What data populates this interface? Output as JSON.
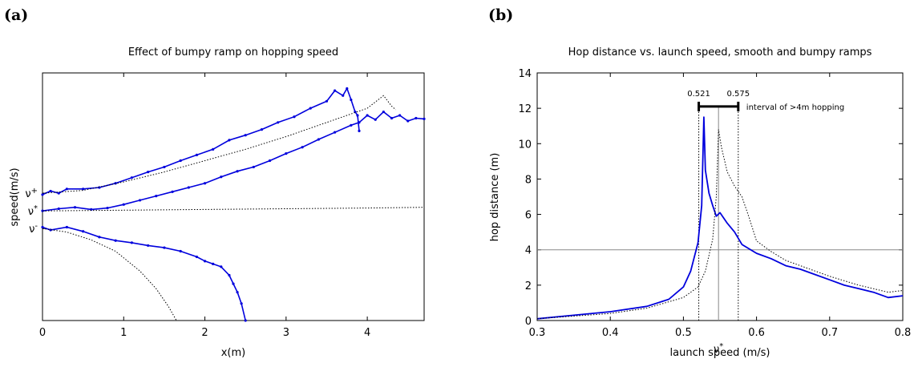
{
  "chart_data": [
    {
      "panel": "(a)",
      "type": "line",
      "title": "Effect of bumpy ramp on hopping speed",
      "xlabel": "x(m)",
      "ylabel": "speed(m/s)",
      "xlim": [
        0,
        4.7
      ],
      "xticks": [
        0,
        1,
        2,
        3,
        4
      ],
      "y_markers": [
        {
          "label": "ν",
          "sup": "+",
          "value": 0.58
        },
        {
          "label": "ν",
          "sup": "*",
          "value": 0.555
        },
        {
          "label": "ν",
          "sup": "-",
          "value": 0.53
        }
      ],
      "ylim": [
        0.4,
        0.75
      ],
      "grid": false,
      "series": [
        {
          "style": "solid-markers",
          "color": "#0000dd",
          "x": [
            0,
            0.1,
            0.2,
            0.3,
            0.5,
            0.7,
            0.9,
            1.1,
            1.3,
            1.5,
            1.7,
            1.9,
            2.1,
            2.3,
            2.5,
            2.7,
            2.9,
            3.1,
            3.3,
            3.5,
            3.6,
            3.7,
            3.75,
            3.8,
            3.85,
            3.88,
            3.9
          ],
          "y": [
            0.578,
            0.583,
            0.58,
            0.586,
            0.586,
            0.588,
            0.594,
            0.602,
            0.61,
            0.617,
            0.626,
            0.634,
            0.642,
            0.655,
            0.662,
            0.67,
            0.68,
            0.688,
            0.7,
            0.71,
            0.725,
            0.718,
            0.728,
            0.712,
            0.695,
            0.69,
            0.668
          ]
        },
        {
          "style": "solid-markers",
          "color": "#0000dd",
          "x": [
            0,
            0.2,
            0.4,
            0.6,
            0.8,
            1.0,
            1.2,
            1.4,
            1.6,
            1.8,
            2.0,
            2.2,
            2.4,
            2.6,
            2.8,
            3.0,
            3.2,
            3.4,
            3.6,
            3.8,
            3.9,
            4.0,
            4.1,
            4.2,
            4.3,
            4.4,
            4.5,
            4.6,
            4.7
          ],
          "y": [
            0.555,
            0.558,
            0.56,
            0.557,
            0.559,
            0.564,
            0.57,
            0.576,
            0.582,
            0.588,
            0.594,
            0.603,
            0.611,
            0.617,
            0.626,
            0.636,
            0.645,
            0.656,
            0.666,
            0.676,
            0.68,
            0.69,
            0.684,
            0.695,
            0.686,
            0.69,
            0.682,
            0.686,
            0.685
          ]
        },
        {
          "style": "solid-markers",
          "color": "#0000dd",
          "x": [
            0,
            0.1,
            0.3,
            0.5,
            0.7,
            0.9,
            1.1,
            1.3,
            1.5,
            1.7,
            1.9,
            2.0,
            2.1,
            2.2,
            2.3,
            2.35,
            2.4,
            2.45,
            2.5
          ],
          "y": [
            0.532,
            0.528,
            0.532,
            0.526,
            0.518,
            0.513,
            0.51,
            0.506,
            0.503,
            0.498,
            0.49,
            0.484,
            0.48,
            0.476,
            0.464,
            0.452,
            0.44,
            0.424,
            0.4
          ]
        },
        {
          "style": "dotted",
          "color": "#000000",
          "x": [
            0,
            0.5,
            1.0,
            1.5,
            2.0,
            2.5,
            3.0,
            3.5,
            4.0,
            4.2,
            4.3,
            4.35
          ],
          "y": [
            0.58,
            0.584,
            0.596,
            0.61,
            0.626,
            0.642,
            0.66,
            0.68,
            0.7,
            0.718,
            0.703,
            0.698
          ]
        },
        {
          "style": "dotted",
          "color": "#000000",
          "x": [
            0,
            1,
            2,
            3,
            4,
            4.7
          ],
          "y": [
            0.555,
            0.556,
            0.557,
            0.558,
            0.559,
            0.56
          ]
        },
        {
          "style": "dotted",
          "color": "#000000",
          "x": [
            0,
            0.3,
            0.6,
            0.9,
            1.2,
            1.4,
            1.55,
            1.65
          ],
          "y": [
            0.53,
            0.525,
            0.514,
            0.498,
            0.47,
            0.445,
            0.42,
            0.4
          ]
        }
      ]
    },
    {
      "panel": "(b)",
      "type": "line",
      "title": "Hop distance vs. launch speed, smooth and bumpy ramps",
      "xlabel": "launch speed (m/s)",
      "ylabel": "hop distance (m)",
      "xlim": [
        0.3,
        0.8
      ],
      "ylim": [
        0,
        14
      ],
      "xticks": [
        0.3,
        0.4,
        0.5,
        0.6,
        0.7,
        0.8
      ],
      "yticks": [
        0,
        2,
        4,
        6,
        8,
        10,
        12,
        14
      ],
      "x_marker": {
        "label": "ν",
        "sup": "*",
        "value": 0.548
      },
      "hline": 4,
      "vlines_dotted": [
        0.521,
        0.575
      ],
      "interval": {
        "from": 0.521,
        "to": 0.575,
        "y": 12.1,
        "left_label": "0.521",
        "right_label": "0.575",
        "text": "interval of >4m hopping"
      },
      "grid": false,
      "series": [
        {
          "style": "solid",
          "color": "#0000dd",
          "x": [
            0.3,
            0.35,
            0.4,
            0.45,
            0.48,
            0.5,
            0.51,
            0.52,
            0.525,
            0.528,
            0.53,
            0.535,
            0.54,
            0.545,
            0.55,
            0.56,
            0.57,
            0.58,
            0.6,
            0.62,
            0.64,
            0.66,
            0.68,
            0.7,
            0.72,
            0.74,
            0.76,
            0.78,
            0.8
          ],
          "y": [
            0.1,
            0.3,
            0.5,
            0.8,
            1.2,
            1.9,
            2.8,
            4.4,
            6.5,
            11.5,
            8.5,
            7.2,
            6.5,
            5.9,
            6.1,
            5.5,
            5.0,
            4.3,
            3.8,
            3.5,
            3.1,
            2.9,
            2.6,
            2.3,
            2.0,
            1.8,
            1.6,
            1.3,
            1.4
          ]
        },
        {
          "style": "dotted",
          "color": "#000000",
          "x": [
            0.3,
            0.4,
            0.45,
            0.5,
            0.52,
            0.53,
            0.54,
            0.545,
            0.548,
            0.552,
            0.56,
            0.57,
            0.58,
            0.59,
            0.6,
            0.62,
            0.64,
            0.66,
            0.7,
            0.74,
            0.78,
            0.8
          ],
          "y": [
            0.1,
            0.4,
            0.7,
            1.3,
            1.9,
            2.8,
            4.6,
            7.0,
            10.8,
            9.8,
            8.4,
            7.6,
            7.0,
            5.8,
            4.5,
            3.9,
            3.4,
            3.1,
            2.5,
            2.0,
            1.6,
            1.7
          ]
        }
      ]
    }
  ]
}
